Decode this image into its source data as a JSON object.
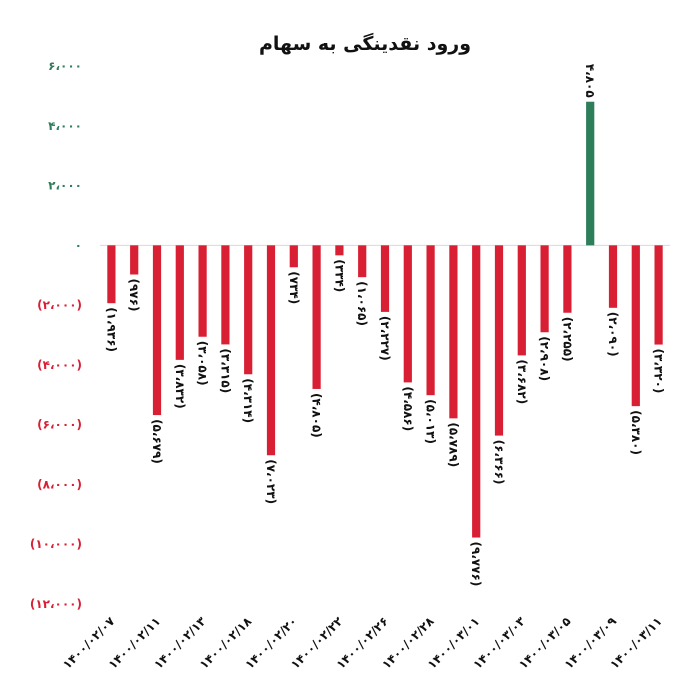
{
  "chart_data": {
    "type": "bar",
    "title": "ورود نقدینگی به سهام",
    "xlabel": "",
    "ylabel": "",
    "ylim": [
      -12000,
      6000
    ],
    "grid": false,
    "legend": "none",
    "colors": {
      "positive": "#2e7d5b",
      "negative": "#d81f34",
      "text": "#111111"
    },
    "y_ticks": [
      {
        "value": 6000,
        "label": "۶،۰۰۰"
      },
      {
        "value": 4000,
        "label": "۴،۰۰۰"
      },
      {
        "value": 2000,
        "label": "۲،۰۰۰"
      },
      {
        "value": 0,
        "label": "۰"
      },
      {
        "value": -2000,
        "label": "(۲،۰۰۰)"
      },
      {
        "value": -4000,
        "label": "(۴،۰۰۰)"
      },
      {
        "value": -6000,
        "label": "(۶،۰۰۰)"
      },
      {
        "value": -8000,
        "label": "(۸،۰۰۰)"
      },
      {
        "value": -10000,
        "label": "(۱۰،۰۰۰)"
      },
      {
        "value": -12000,
        "label": "(۱۲،۰۰۰)"
      }
    ],
    "x_tick_labels": [
      "۱۴۰۰/۰۲/۰۷",
      "۱۴۰۰/۰۲/۱۱",
      "۱۴۰۰/۰۲/۱۳",
      "۱۴۰۰/۰۲/۱۸",
      "۱۴۰۰/۰۲/۲۰",
      "۱۴۰۰/۰۲/۲۲",
      "۱۴۰۰/۰۲/۲۶",
      "۱۴۰۰/۰۲/۲۸",
      "۱۴۰۰/۰۳/۰۱",
      "۱۴۰۰/۰۳/۰۳",
      "۱۴۰۰/۰۳/۰۵",
      "۱۴۰۰/۰۳/۰۹",
      "۱۴۰۰/۰۳/۱۱"
    ],
    "values": [
      -1936,
      -976,
      -5679,
      -3832,
      -3058,
      -3315,
      -4314,
      -7023,
      -734,
      -4805,
      -334,
      -1065,
      -2227,
      -4586,
      -5013,
      -5789,
      -9776,
      -6366,
      -3682,
      -2908,
      -2255,
      4805,
      -2090,
      -5380,
      -3320
    ],
    "value_labels": [
      "(۱،۹۳۶)",
      "(۹۷۶)",
      "(۵،۶۷۹)",
      "(۳،۸۳۲)",
      "(۳،۰۵۸)",
      "(۳،۳۱۵)",
      "(۴،۳۱۴)",
      "(۷،۰۲۳)",
      "(۷۳۴)",
      "(۴،۸۰۵)",
      "(۳۳۴)",
      "(۱،۰۶۵)",
      "(۲،۲۲۷)",
      "(۴،۵۸۶)",
      "(۵،۰۱۳)",
      "(۵،۷۸۹)",
      "(۹،۷۷۶)",
      "(۶،۳۶۶)",
      "(۳،۶۸۲)",
      "(۲،۹۰۸)",
      "(۲،۲۵۵)",
      "۴،۸۰۵",
      "(۲،۰۹۰)",
      "(۵،۳۸۰)",
      "(۳،۳۲۰)"
    ]
  }
}
